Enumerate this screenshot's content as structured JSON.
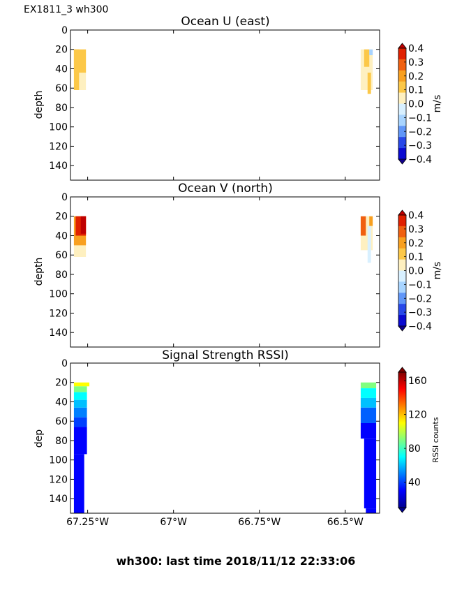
{
  "figure": {
    "corner_label": "EX1811_3 wh300",
    "footer": "wh300: last time 2018/11/12 22:33:06"
  },
  "chart_data": [
    {
      "type": "heatmap",
      "title": "Ocean U (east)",
      "ylabel": "depth",
      "yticks": [
        0,
        20,
        40,
        60,
        80,
        100,
        120,
        140
      ],
      "ylim": [
        155,
        0
      ],
      "xlim": [
        -67.3,
        -66.4
      ],
      "xticks": [
        -67.25,
        -67.0,
        -66.75,
        -66.5
      ],
      "xtick_labels": [],
      "colorbar": {
        "label": "m/s",
        "ticks": [
          "0.4",
          "0.3",
          "0.2",
          "0.1",
          "0.0",
          "−0.1",
          "−0.2",
          "−0.3",
          "−0.4"
        ],
        "levels": [
          "#c00000",
          "#e02000",
          "#f06010",
          "#f8a020",
          "#fcc848",
          "#fef0c0",
          "#d8f0ff",
          "#a8d4ff",
          "#6096f8",
          "#2848e8",
          "#0a0ad0",
          "#10008c"
        ]
      },
      "segments": [
        {
          "x": [
            -67.29,
            -67.255
          ],
          "depth": [
            20,
            62
          ],
          "color": "#fef0c0"
        },
        {
          "x": [
            -67.29,
            -67.255
          ],
          "depth": [
            20,
            44
          ],
          "color": "#fcc848"
        },
        {
          "x": [
            -67.29,
            -67.275
          ],
          "depth": [
            20,
            62
          ],
          "color": "#fcc848"
        },
        {
          "x": [
            -66.455,
            -66.42
          ],
          "depth": [
            20,
            62
          ],
          "color": "#fef0c0"
        },
        {
          "x": [
            -66.445,
            -66.43
          ],
          "depth": [
            20,
            38
          ],
          "color": "#fcc848"
        },
        {
          "x": [
            -66.43,
            -66.42
          ],
          "depth": [
            20,
            26
          ],
          "color": "#a8d4ff"
        },
        {
          "x": [
            -66.435,
            -66.425
          ],
          "depth": [
            44,
            66
          ],
          "color": "#fcc848"
        }
      ]
    },
    {
      "type": "heatmap",
      "title": "Ocean V (north)",
      "ylabel": "depth",
      "yticks": [
        0,
        20,
        40,
        60,
        80,
        100,
        120,
        140
      ],
      "ylim": [
        155,
        0
      ],
      "xlim": [
        -67.3,
        -66.4
      ],
      "xticks": [
        -67.25,
        -67.0,
        -66.75,
        -66.5
      ],
      "xtick_labels": [],
      "colorbar": {
        "label": "m/s",
        "ticks": [
          "0.4",
          "0.3",
          "0.2",
          "0.1",
          "0.0",
          "−0.1",
          "−0.2",
          "−0.3",
          "−0.4"
        ],
        "levels": [
          "#c00000",
          "#e02000",
          "#f06010",
          "#f8a020",
          "#fcc848",
          "#fef0c0",
          "#d8f0ff",
          "#a8d4ff",
          "#6096f8",
          "#2848e8",
          "#0a0ad0",
          "#10008c"
        ]
      },
      "segments": [
        {
          "x": [
            -67.29,
            -67.255
          ],
          "depth": [
            20,
            62
          ],
          "color": "#fef0c0"
        },
        {
          "x": [
            -67.29,
            -67.255
          ],
          "depth": [
            20,
            50
          ],
          "color": "#f8a020"
        },
        {
          "x": [
            -67.285,
            -67.255
          ],
          "depth": [
            20,
            40
          ],
          "color": "#e02000"
        },
        {
          "x": [
            -67.27,
            -67.255
          ],
          "depth": [
            20,
            38
          ],
          "color": "#c00000"
        },
        {
          "x": [
            -66.455,
            -66.42
          ],
          "depth": [
            20,
            55
          ],
          "color": "#fef0c0"
        },
        {
          "x": [
            -66.455,
            -66.44
          ],
          "depth": [
            20,
            40
          ],
          "color": "#f06010"
        },
        {
          "x": [
            -66.435,
            -66.425
          ],
          "depth": [
            30,
            68
          ],
          "color": "#d8f0ff"
        },
        {
          "x": [
            -66.43,
            -66.42
          ],
          "depth": [
            20,
            30
          ],
          "color": "#f8a020"
        }
      ]
    },
    {
      "type": "heatmap",
      "title": "Signal Strength RSSI)",
      "ylabel": "dep",
      "yticks": [
        0,
        20,
        40,
        60,
        80,
        100,
        120,
        140
      ],
      "ylim": [
        155,
        0
      ],
      "xlim": [
        -67.3,
        -66.4
      ],
      "xticks": [
        -67.25,
        -67.0,
        -66.75,
        -66.5
      ],
      "xtick_labels": [
        "67.25°W",
        "67°W",
        "66.75°W",
        "66.5°W"
      ],
      "colorbar": {
        "label": "RSSI counts",
        "ticks": [
          "160",
          "120",
          "80",
          "40"
        ],
        "tick_values": [
          160,
          120,
          80,
          40
        ],
        "range": [
          10,
          170
        ],
        "stops": [
          "#000090",
          "#0000ff",
          "#0080ff",
          "#00ffff",
          "#80ff80",
          "#ffff00",
          "#ff8000",
          "#ff0000",
          "#800000"
        ]
      },
      "segments": [
        {
          "x": [
            -67.29,
            -67.245
          ],
          "depth": [
            20,
            24
          ],
          "color": "#ffff00"
        },
        {
          "x": [
            -67.29,
            -67.252
          ],
          "depth": [
            24,
            30
          ],
          "color": "#80ff80"
        },
        {
          "x": [
            -67.29,
            -67.252
          ],
          "depth": [
            30,
            38
          ],
          "color": "#00ffff"
        },
        {
          "x": [
            -67.29,
            -67.252
          ],
          "depth": [
            38,
            46
          ],
          "color": "#00c0ff"
        },
        {
          "x": [
            -67.29,
            -67.252
          ],
          "depth": [
            46,
            56
          ],
          "color": "#0080ff"
        },
        {
          "x": [
            -67.29,
            -67.252
          ],
          "depth": [
            56,
            66
          ],
          "color": "#0040ff"
        },
        {
          "x": [
            -67.29,
            -67.252
          ],
          "depth": [
            66,
            94
          ],
          "color": "#0000ff"
        },
        {
          "x": [
            -67.29,
            -67.26
          ],
          "depth": [
            94,
            155
          ],
          "color": "#0000ff"
        },
        {
          "x": [
            -66.455,
            -66.41
          ],
          "depth": [
            20,
            26
          ],
          "color": "#80ff80"
        },
        {
          "x": [
            -66.455,
            -66.41
          ],
          "depth": [
            26,
            36
          ],
          "color": "#00ffff"
        },
        {
          "x": [
            -66.455,
            -66.41
          ],
          "depth": [
            36,
            46
          ],
          "color": "#00c0ff"
        },
        {
          "x": [
            -66.455,
            -66.41
          ],
          "depth": [
            46,
            62
          ],
          "color": "#0060ff"
        },
        {
          "x": [
            -66.455,
            -66.41
          ],
          "depth": [
            62,
            78
          ],
          "color": "#0000ff"
        },
        {
          "x": [
            -66.445,
            -66.41
          ],
          "depth": [
            78,
            150
          ],
          "color": "#0000ff"
        },
        {
          "x": [
            -66.44,
            -66.41
          ],
          "depth": [
            150,
            155
          ],
          "color": "#0000ff"
        }
      ]
    }
  ]
}
